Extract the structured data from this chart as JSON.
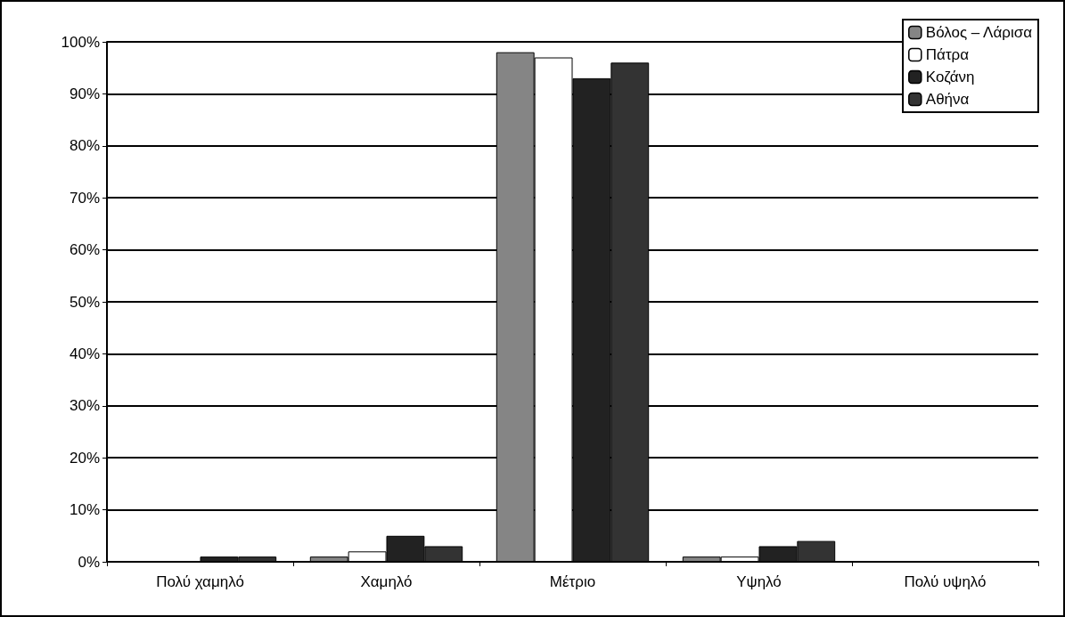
{
  "chart_data": {
    "type": "bar",
    "categories": [
      "Πολύ χαμηλό",
      "Χαμηλό",
      "Μέτριο",
      "Υψηλό",
      "Πολύ υψηλό"
    ],
    "series": [
      {
        "name": "Βόλος – Λάρισα",
        "color": "#858585",
        "values": [
          0,
          1,
          98,
          1,
          0
        ]
      },
      {
        "name": "Πάτρα",
        "color": "#ffffff",
        "values": [
          0,
          2,
          97,
          1,
          0
        ]
      },
      {
        "name": "Κοζάνη",
        "color": "#222222",
        "values": [
          1,
          5,
          93,
          3,
          0
        ]
      },
      {
        "name": "Αθήνα",
        "color": "#333333",
        "values": [
          1,
          3,
          96,
          4,
          0
        ]
      }
    ],
    "ylim": [
      0,
      100
    ],
    "yticks": [
      {
        "value": 0,
        "label": "0%"
      },
      {
        "value": 10,
        "label": "10%"
      },
      {
        "value": 20,
        "label": "20%"
      },
      {
        "value": 30,
        "label": "30%"
      },
      {
        "value": 40,
        "label": "40%"
      },
      {
        "value": 50,
        "label": "50%"
      },
      {
        "value": 60,
        "label": "60%"
      },
      {
        "value": 70,
        "label": "70%"
      },
      {
        "value": 80,
        "label": "80%"
      },
      {
        "value": 90,
        "label": "90%"
      },
      {
        "value": 100,
        "label": "100%"
      }
    ],
    "grid": "y",
    "legend": "top right"
  }
}
